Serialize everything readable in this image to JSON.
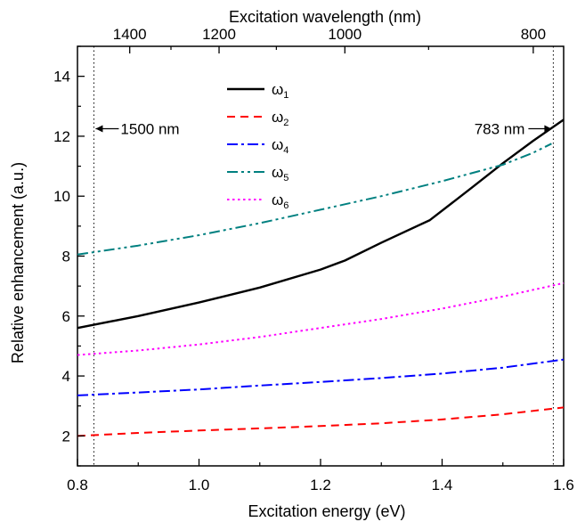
{
  "chart_data": {
    "type": "line",
    "xlabel": "Excitation energy (eV)",
    "ylabel": "Relative enhancement (a.u.)",
    "top_xlabel": "Excitation wavelength (nm)",
    "xlim": [
      0.8,
      1.6
    ],
    "ylim": [
      1,
      15
    ],
    "x_ticks": [
      0.8,
      1.0,
      1.2,
      1.4,
      1.6
    ],
    "x_tick_labels": [
      "0.8",
      "1.0",
      "1.2",
      "1.4",
      "1.6"
    ],
    "y_ticks": [
      2,
      4,
      6,
      8,
      10,
      12,
      14
    ],
    "y_tick_labels": [
      "2",
      "4",
      "6",
      "8",
      "10",
      "12",
      "14"
    ],
    "top_ticks_nm": [
      1400,
      1200,
      1000,
      800
    ],
    "top_tick_labels": [
      "1400",
      "1200",
      "1000",
      "800"
    ],
    "top_tick_energies_eV": [
      0.886,
      1.033,
      1.24,
      1.55
    ],
    "grid": false,
    "legend_position": "top-center",
    "series": [
      {
        "name": "ω1",
        "legend_main": "ω",
        "legend_sub": "1",
        "color": "#000000",
        "dash": "solid",
        "x": [
          0.8,
          0.9,
          1.0,
          1.1,
          1.2,
          1.24,
          1.3,
          1.38,
          1.45,
          1.5,
          1.55,
          1.6
        ],
        "y": [
          5.6,
          6.0,
          6.45,
          6.95,
          7.55,
          7.85,
          8.45,
          9.2,
          10.3,
          11.1,
          11.85,
          12.55
        ]
      },
      {
        "name": "ω2",
        "legend_main": "ω",
        "legend_sub": "2",
        "color": "#ff0000",
        "dash": "dashed",
        "x": [
          0.8,
          0.9,
          1.0,
          1.1,
          1.2,
          1.3,
          1.4,
          1.5,
          1.6
        ],
        "y": [
          2.0,
          2.1,
          2.18,
          2.25,
          2.33,
          2.42,
          2.55,
          2.72,
          2.95
        ]
      },
      {
        "name": "ω4",
        "legend_main": "ω",
        "legend_sub": "4",
        "color": "#0000ff",
        "dash": "dashdot",
        "x": [
          0.8,
          0.9,
          1.0,
          1.1,
          1.2,
          1.3,
          1.4,
          1.5,
          1.6
        ],
        "y": [
          3.35,
          3.45,
          3.55,
          3.68,
          3.8,
          3.93,
          4.08,
          4.28,
          4.55
        ]
      },
      {
        "name": "ω5",
        "legend_main": "ω",
        "legend_sub": "5",
        "color": "#008080",
        "dash": "dashdotdot",
        "x": [
          0.8,
          0.9,
          1.0,
          1.1,
          1.2,
          1.3,
          1.4,
          1.5,
          1.55,
          1.58
        ],
        "y": [
          8.05,
          8.35,
          8.7,
          9.1,
          9.55,
          10.0,
          10.5,
          11.05,
          11.45,
          11.75
        ]
      },
      {
        "name": "ω6",
        "legend_main": "ω",
        "legend_sub": "6",
        "color": "#ff00ff",
        "dash": "dotted",
        "x": [
          0.8,
          0.9,
          1.0,
          1.1,
          1.2,
          1.3,
          1.4,
          1.5,
          1.6
        ],
        "y": [
          4.7,
          4.85,
          5.05,
          5.3,
          5.6,
          5.9,
          6.25,
          6.65,
          7.1
        ]
      }
    ],
    "vlines": [
      {
        "x": 0.827,
        "label": "1500 nm",
        "arrow": "left",
        "label_y": 12.25
      },
      {
        "x": 1.583,
        "label": "783 nm",
        "arrow": "right",
        "label_y": 12.25
      }
    ]
  }
}
